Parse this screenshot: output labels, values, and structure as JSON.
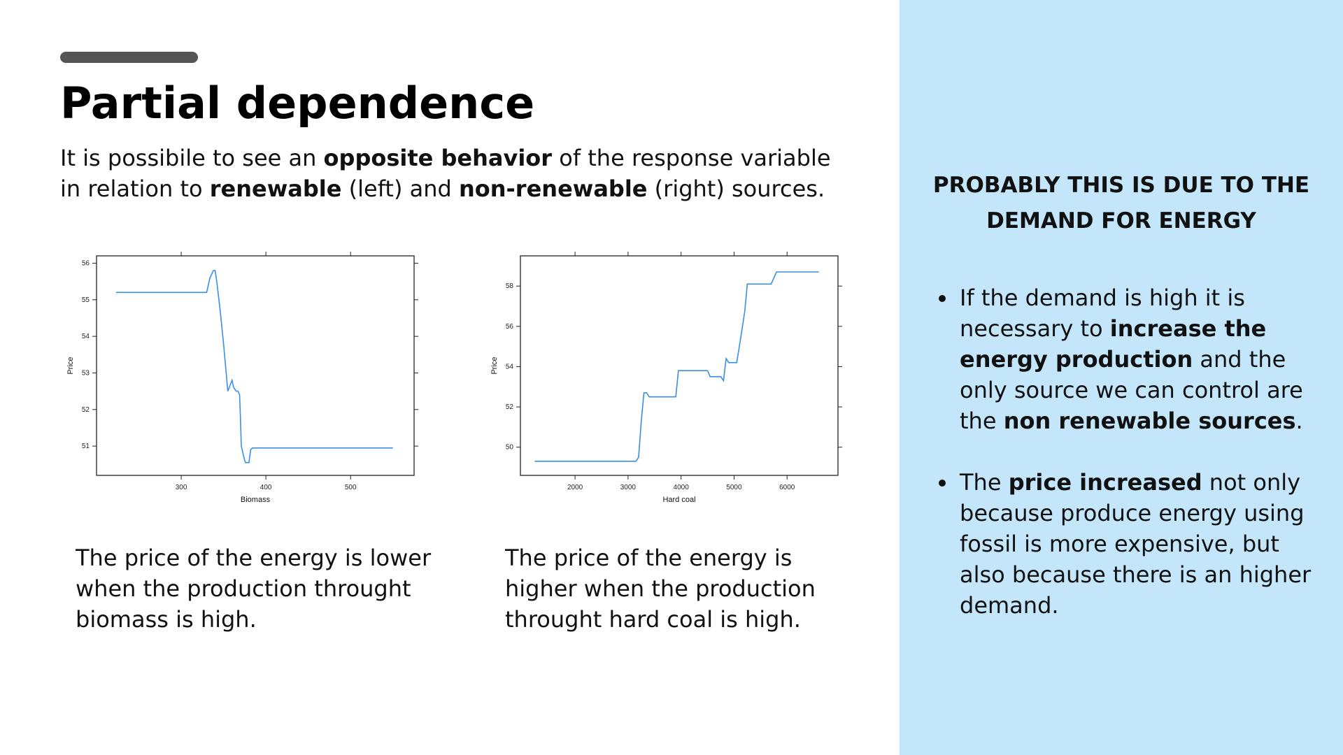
{
  "slide": {
    "title": "Partial dependence",
    "subtitle": [
      {
        "text": "It is possibile to see an ",
        "bold": false
      },
      {
        "text": "opposite behavior",
        "bold": true
      },
      {
        "text": " of the response variable in relation to ",
        "bold": false
      },
      {
        "text": "renewable",
        "bold": true
      },
      {
        "text": " (left) and ",
        "bold": false
      },
      {
        "text": "non-renewable",
        "bold": true
      },
      {
        "text": " (right) sources.",
        "bold": false
      }
    ],
    "caption_left": "The price of the energy is lower when the production throught biomass is high.",
    "caption_right": "The price of the energy is higher when the production throught hard coal is high.",
    "side_heading": "PROBABLY THIS IS DUE TO THE DEMAND FOR ENERGY",
    "bullets": [
      [
        {
          "text": "If the demand is high it is necessary to ",
          "bold": false
        },
        {
          "text": "increase the energy production",
          "bold": true
        },
        {
          "text": " and the only source we can control are the ",
          "bold": false
        },
        {
          "text": "non renewable sources",
          "bold": true
        },
        {
          "text": ".",
          "bold": false
        }
      ],
      [
        {
          "text": "The ",
          "bold": false
        },
        {
          "text": "price increased",
          "bold": true
        },
        {
          "text": " not only because produce energy using fossil is more expensive, but also because there is an higher demand.",
          "bold": false
        }
      ]
    ],
    "colors": {
      "panel_background": "#c4e6fb",
      "accent_bar": "#555555",
      "line": "#3a8ee6"
    }
  },
  "chart_data": [
    {
      "type": "line",
      "xlabel": "Biomass",
      "ylabel": "Price",
      "xlim": [
        200,
        575
      ],
      "ylim": [
        50.2,
        56.2
      ],
      "xticks": [
        300,
        400,
        500
      ],
      "yticks": [
        51,
        52,
        53,
        54,
        55,
        56
      ],
      "x": [
        223,
        250,
        300,
        325,
        330,
        334,
        338,
        340,
        342,
        346,
        350,
        355,
        360,
        362,
        365,
        367,
        369,
        371,
        373,
        375,
        376,
        378,
        380,
        382,
        384,
        386,
        388,
        550
      ],
      "y": [
        55.2,
        55.2,
        55.2,
        55.2,
        55.2,
        55.6,
        55.8,
        55.8,
        55.5,
        54.7,
        53.8,
        52.5,
        52.8,
        52.6,
        52.5,
        52.5,
        52.4,
        51.0,
        50.8,
        50.6,
        50.55,
        50.55,
        50.55,
        50.9,
        50.95,
        50.95,
        50.95,
        50.95
      ]
    },
    {
      "type": "line",
      "xlabel": "Hard coal",
      "ylabel": "Price",
      "xlim": [
        970,
        6960
      ],
      "ylim": [
        48.6,
        59.5
      ],
      "xticks": [
        2000,
        3000,
        4000,
        5000,
        6000
      ],
      "yticks": [
        50,
        52,
        54,
        56,
        58
      ],
      "x": [
        1240,
        2000,
        3000,
        3150,
        3200,
        3250,
        3300,
        3350,
        3400,
        3450,
        3900,
        3950,
        4500,
        4550,
        4750,
        4800,
        4850,
        4900,
        5050,
        5100,
        5200,
        5250,
        5300,
        5700,
        5800,
        6600
      ],
      "y": [
        49.3,
        49.3,
        49.3,
        49.3,
        49.5,
        51.3,
        52.7,
        52.7,
        52.5,
        52.5,
        52.5,
        53.8,
        53.8,
        53.5,
        53.5,
        53.3,
        54.4,
        54.2,
        54.2,
        55.0,
        56.7,
        58.1,
        58.1,
        58.1,
        58.7,
        58.7
      ]
    }
  ]
}
